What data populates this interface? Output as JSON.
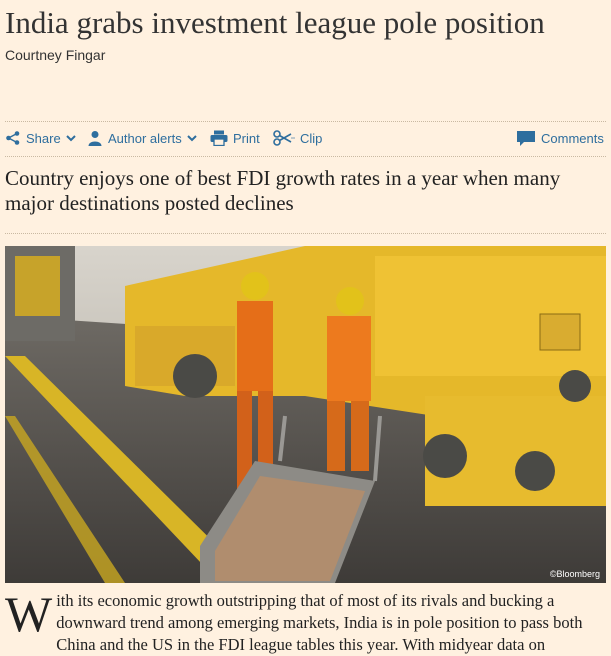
{
  "article": {
    "headline": "India grabs investment league pole position",
    "author": "Courtney Fingar",
    "standfirst": "Country enjoys one of best FDI growth rates in a year when many major destinations posted declines",
    "photo_credit": "©Bloomberg",
    "body_dropcap": "W",
    "body_text": "ith its economic growth outstripping that of most of its rivals and bucking a downward trend among emerging markets, India is in pole position to pass both China and the US in the FDI league tables this year. With midyear data on"
  },
  "toolbar": {
    "share_label": "Share",
    "author_alerts_label": "Author alerts",
    "print_label": "Print",
    "clip_label": "Clip",
    "comments_label": "Comments"
  },
  "colors": {
    "background": "#fff1e0",
    "link": "#2e6e9e"
  },
  "icons": [
    "share-icon",
    "chevron-down-icon",
    "person-icon",
    "printer-icon",
    "scissors-icon",
    "comment-bubble-icon"
  ]
}
